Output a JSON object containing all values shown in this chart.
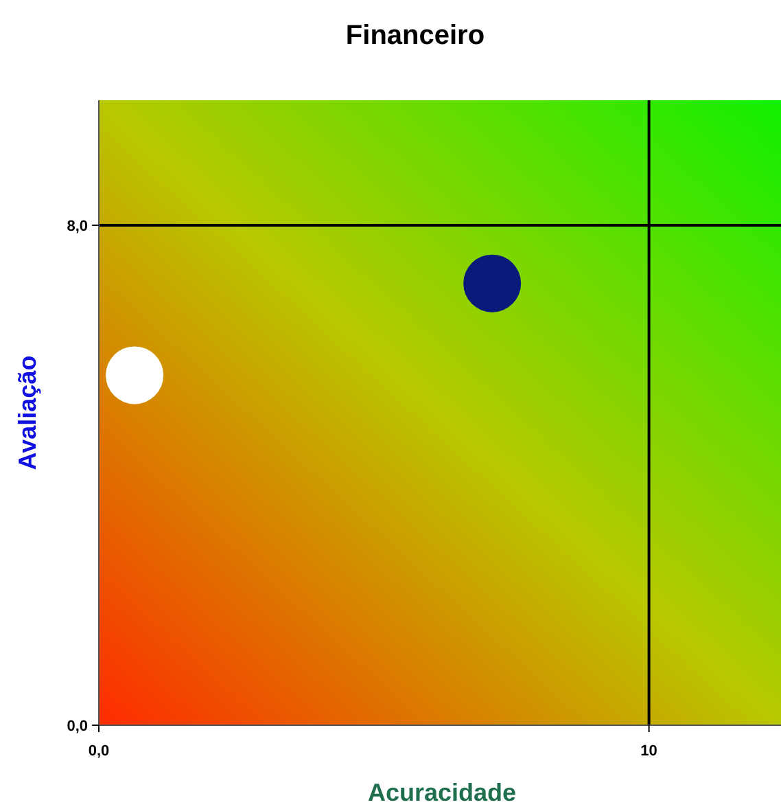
{
  "chart_data": {
    "type": "scatter",
    "title": "Financeiro",
    "xlabel": "Acuracidade",
    "ylabel": "Avaliação",
    "x": [
      0.65,
      7.15
    ],
    "values": [
      5.6,
      7.07
    ],
    "colors": [
      "#ffffff",
      "#0a1a7a"
    ],
    "marker": "circle",
    "xlim": [
      0,
      12.4
    ],
    "ylim": [
      0,
      10
    ],
    "xticks": [
      {
        "value": 0,
        "label": "0,0"
      },
      10
    ],
    "yticks": [
      {
        "value": 0,
        "label": "0,0"
      },
      {
        "value": 8,
        "label": "8,0"
      }
    ],
    "ref_lines": [
      {
        "axis": "x",
        "value": 10,
        "color": "#000000"
      },
      {
        "axis": "y",
        "value": 8,
        "color": "#000000"
      }
    ]
  }
}
